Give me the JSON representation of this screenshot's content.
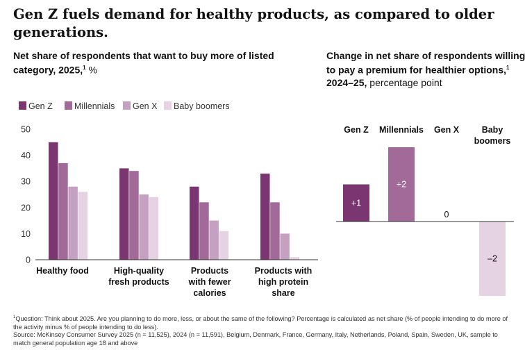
{
  "title": "Gen Z fuels demand for healthy products, as compared to older generations.",
  "left_subtitle": {
    "main": "Net share of respondents that want to buy more of listed category, 2025,",
    "sup": "1",
    "unit": " %"
  },
  "right_subtitle": {
    "main": "Change in net share of respondents willing to pay a premium for healthier options,",
    "sup": "1",
    "bold_tail": " 2024–25,",
    "unit": " percentage point"
  },
  "footnote": {
    "question_sup": "1",
    "question": "Question: Think about 2025. Are you planning to do more, less, or about the same of the following? Percentage is calculated as net share (% of people intending to do more of the activity minus % of people intending to do less).",
    "source": "Source: McKinsey Consumer Survey 2025 (n = 11,525), 2024 (n = 11,591), Belgium, Denmark, France, Germany, Italy, Netherlands, Poland, Spain, Sweden, UK, sample to match general population age 18 and above"
  },
  "colors": {
    "Gen Z": "#7b3571",
    "Millennials": "#a26a98",
    "Gen X": "#c4a1c0",
    "Baby boomers": "#e5d2e3"
  },
  "chart_data": [
    {
      "type": "bar",
      "categories": [
        "Healthy food",
        "High-quality fresh products",
        "Products with fewer calories",
        "Products with high protein share"
      ],
      "category_lines": [
        [
          "Healthy food"
        ],
        [
          "High-quality",
          "fresh products"
        ],
        [
          "Products",
          "with fewer",
          "calories"
        ],
        [
          "Products with",
          "high protein",
          "share"
        ]
      ],
      "series": [
        {
          "name": "Gen Z",
          "values": [
            45,
            35,
            28,
            33
          ]
        },
        {
          "name": "Millennials",
          "values": [
            37,
            34,
            22,
            22
          ]
        },
        {
          "name": "Gen X",
          "values": [
            28,
            25,
            15,
            10
          ]
        },
        {
          "name": "Baby boomers",
          "values": [
            26,
            24,
            11,
            1
          ]
        }
      ],
      "ylim": [
        0,
        50
      ],
      "yticks": [
        0,
        10,
        20,
        30,
        40,
        50
      ],
      "legend": "top-left",
      "grid": false
    },
    {
      "type": "bar",
      "categories": [
        "Gen Z",
        "Millennials",
        "Gen X",
        "Baby boomers"
      ],
      "category_lines": [
        [
          "Gen Z"
        ],
        [
          "Millennials"
        ],
        [
          "Gen X"
        ],
        [
          "Baby",
          "boomers"
        ]
      ],
      "values": [
        1,
        2,
        0,
        -2
      ],
      "labels": [
        "+1",
        "+2",
        "0",
        "–2"
      ],
      "ylim": [
        -2,
        2
      ],
      "grid": false
    }
  ]
}
